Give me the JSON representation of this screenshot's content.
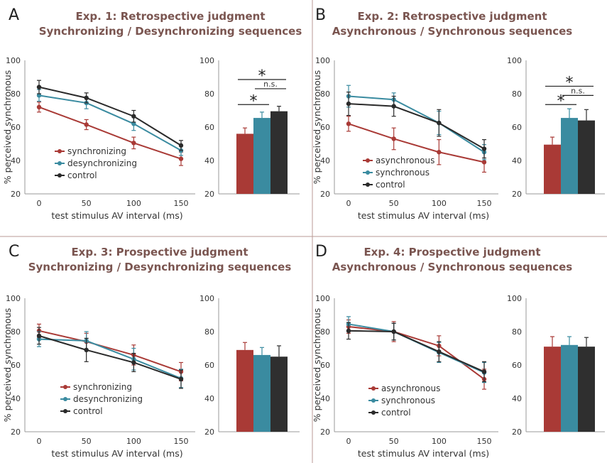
{
  "chart_data": [
    {
      "panel": "A",
      "title": [
        "Exp. 1: Retrospective judgment",
        "Synchronizing / Desynchronizing sequences"
      ],
      "line": {
        "type": "line",
        "x": [
          0,
          50,
          100,
          150
        ],
        "xlabel": "test stimulus AV interval (ms)",
        "ylabel": "% perceived synchronous",
        "ylim": [
          20,
          100
        ],
        "yticks": [
          20,
          40,
          60,
          80,
          100
        ],
        "series": [
          {
            "name": "synchronizing",
            "color": "#a93a36",
            "values": [
              72,
              61.5,
              50.5,
              41
            ],
            "err": [
              3,
              3,
              3.5,
              4
            ]
          },
          {
            "name": "desynchronizing",
            "color": "#3a8ba0",
            "values": [
              79,
              74.5,
              62,
              46
            ],
            "err": [
              3.5,
              3.5,
              4,
              3
            ]
          },
          {
            "name": "control",
            "color": "#2a2a2a",
            "values": [
              84,
              77.5,
              66.5,
              49
            ],
            "err": [
              4,
              3,
              3.5,
              3
            ]
          }
        ],
        "legend_order": [
          0,
          1,
          2
        ]
      },
      "bar": {
        "type": "bar",
        "ylim": [
          20,
          100
        ],
        "yticks": [
          20,
          40,
          60,
          80,
          100
        ],
        "values": [
          56,
          65.5,
          69.5
        ],
        "err": [
          3.5,
          3.5,
          3
        ],
        "colors": [
          "#a93a36",
          "#3a8ba0",
          "#2f2f2f"
        ],
        "annotations": [
          {
            "from": 0,
            "to": 1,
            "label": "*",
            "level": 1
          },
          {
            "from": 1,
            "to": 2,
            "label": "n.s.",
            "level": 2
          },
          {
            "from": 0,
            "to": 2,
            "label": "*",
            "level": 3
          }
        ]
      }
    },
    {
      "panel": "B",
      "title": [
        "Exp. 2: Retrospective judgment",
        "Asynchronous / Synchronous sequences"
      ],
      "line": {
        "type": "line",
        "x": [
          0,
          50,
          100,
          150
        ],
        "xlabel": "test stimulus AV interval (ms)",
        "ylabel": "% perceived synchronous",
        "ylim": [
          20,
          100
        ],
        "yticks": [
          20,
          40,
          60,
          80,
          100
        ],
        "series": [
          {
            "name": "asynchronous",
            "color": "#a93a36",
            "values": [
              62,
              53,
              45,
              39
            ],
            "err": [
              4.5,
              6.5,
              7.5,
              6
            ]
          },
          {
            "name": "synchronous",
            "color": "#3a8ba0",
            "values": [
              78.5,
              76.5,
              62.5,
              45
            ],
            "err": [
              6.5,
              4,
              7,
              4.5
            ]
          },
          {
            "name": "control",
            "color": "#2a2a2a",
            "values": [
              74,
              72.5,
              62.5,
              47
            ],
            "err": [
              7,
              6,
              8,
              5.5
            ]
          }
        ],
        "legend_order": [
          0,
          1,
          2
        ]
      },
      "bar": {
        "type": "bar",
        "ylim": [
          20,
          100
        ],
        "yticks": [
          20,
          40,
          60,
          80,
          100
        ],
        "values": [
          49.5,
          65.5,
          64
        ],
        "err": [
          4.5,
          5.5,
          6.5
        ],
        "colors": [
          "#a93a36",
          "#3a8ba0",
          "#2f2f2f"
        ],
        "annotations": [
          {
            "from": 0,
            "to": 1,
            "label": "*",
            "level": 1
          },
          {
            "from": 1,
            "to": 2,
            "label": "n.s.",
            "level": 2
          },
          {
            "from": 0,
            "to": 2,
            "label": "*",
            "level": 3
          }
        ]
      }
    },
    {
      "panel": "C",
      "title": [
        "Exp. 3: Prospective judgment",
        "Synchronizing / Desynchronizing sequences"
      ],
      "line": {
        "type": "line",
        "x": [
          0,
          50,
          100,
          150
        ],
        "xlabel": "test stimulus AV interval (ms)",
        "ylabel": "% perceived synchronous",
        "ylim": [
          20,
          100
        ],
        "yticks": [
          20,
          40,
          60,
          80,
          100
        ],
        "series": [
          {
            "name": "synchronizing",
            "color": "#a93a36",
            "values": [
              80.5,
              74,
              66,
              56
            ],
            "err": [
              4,
              5,
              6,
              5.5
            ]
          },
          {
            "name": "desynchronizing",
            "color": "#3a8ba0",
            "values": [
              75.5,
              74.5,
              63.5,
              52
            ],
            "err": [
              4.5,
              5.5,
              6.5,
              5.5
            ]
          },
          {
            "name": "control",
            "color": "#2a2a2a",
            "values": [
              77.5,
              69,
              61.5,
              51.5
            ],
            "err": [
              5,
              7,
              5.5,
              5.5
            ]
          }
        ],
        "legend_order": [
          0,
          1,
          2
        ]
      },
      "bar": {
        "type": "bar",
        "ylim": [
          20,
          100
        ],
        "yticks": [
          20,
          40,
          60,
          80,
          100
        ],
        "values": [
          69,
          66,
          65
        ],
        "err": [
          4.5,
          4.5,
          6.5
        ],
        "colors": [
          "#a93a36",
          "#3a8ba0",
          "#2f2f2f"
        ],
        "annotations": []
      }
    },
    {
      "panel": "D",
      "title": [
        "Exp. 4: Prospective judgment",
        "Asynchronous / Synchronous sequences"
      ],
      "line": {
        "type": "line",
        "x": [
          0,
          50,
          100,
          150
        ],
        "xlabel": "test stimulus AV interval (ms)",
        "ylabel": "% perceived synchronous",
        "ylim": [
          20,
          100
        ],
        "yticks": [
          20,
          40,
          60,
          80,
          100
        ],
        "series": [
          {
            "name": "asynchronous",
            "color": "#a93a36",
            "values": [
              83,
              80,
              71.5,
              51.5
            ],
            "err": [
              4,
              6,
              6,
              6
            ]
          },
          {
            "name": "synchronous",
            "color": "#3a8ba0",
            "values": [
              84.5,
              80,
              67.5,
              55.5
            ],
            "err": [
              4.5,
              5,
              6,
              6
            ]
          },
          {
            "name": "control",
            "color": "#2a2a2a",
            "values": [
              80.5,
              80,
              68,
              56
            ],
            "err": [
              5,
              5,
              6,
              6
            ]
          }
        ],
        "legend_order": [
          0,
          1,
          2
        ]
      },
      "bar": {
        "type": "bar",
        "ylim": [
          20,
          100
        ],
        "yticks": [
          20,
          40,
          60,
          80,
          100
        ],
        "values": [
          71,
          72,
          71
        ],
        "err": [
          6,
          5,
          5.5
        ],
        "colors": [
          "#a93a36",
          "#3a8ba0",
          "#2f2f2f"
        ],
        "annotations": []
      }
    }
  ]
}
